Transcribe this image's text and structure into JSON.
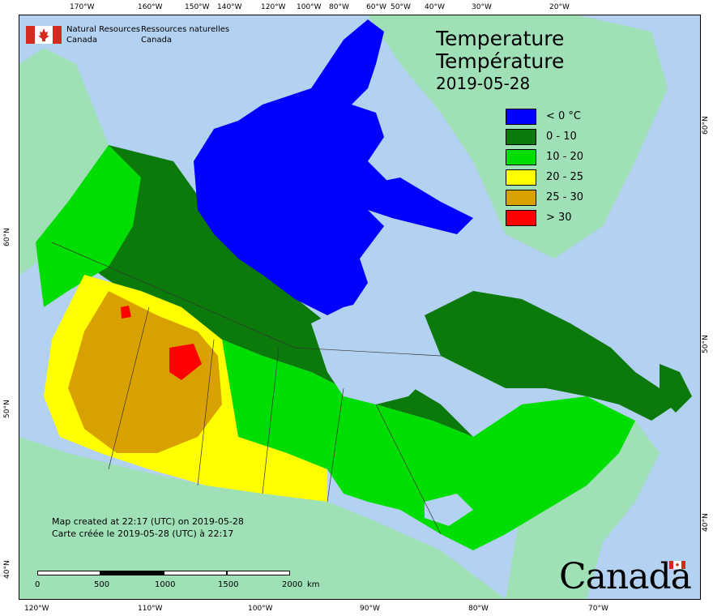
{
  "top_longitudes": [
    "170°W",
    "160°W",
    "150°W",
    "140°W",
    "120°W",
    "100°W",
    "80°W",
    "60°W",
    "50°W",
    "40°W",
    "30°W",
    "20°W"
  ],
  "bottom_longitudes": [
    "120°W",
    "110°W",
    "100°W",
    "90°W",
    "80°W",
    "70°W"
  ],
  "left_latitudes": [
    "60°N",
    "50°N",
    "40°N"
  ],
  "right_latitudes": [
    "60°N",
    "50°N",
    "40°N"
  ],
  "agency": {
    "english_line1": "Natural Resources",
    "english_line2": "Canada",
    "french_line1": "Ressources naturelles",
    "french_line2": "Canada"
  },
  "title": {
    "english": "Temperature",
    "french": "Température",
    "date": "2019-05-28"
  },
  "legend": [
    {
      "label": "< 0 °C",
      "color": "#0000ff"
    },
    {
      "label": "0 - 10",
      "color": "#0b7a0b"
    },
    {
      "label": "10 - 20",
      "color": "#00dd00"
    },
    {
      "label": "20 - 25",
      "color": "#ffff00"
    },
    {
      "label": "25 - 30",
      "color": "#d9a100"
    },
    {
      "label": "> 30",
      "color": "#ff0000"
    }
  ],
  "credits": {
    "english": "Map created at 22:17 (UTC) on 2019-05-28",
    "french": "Carte créée le 2019-05-28 (UTC) à 22:17"
  },
  "scale": {
    "labels": [
      "0",
      "500",
      "1000",
      "1500",
      "2000"
    ],
    "unit": "km"
  },
  "wordmark": "Canada",
  "colors": {
    "ocean": "#b3d1f0",
    "foreign_land": "#9fe0b6",
    "flag_red": "#d52b1e"
  }
}
